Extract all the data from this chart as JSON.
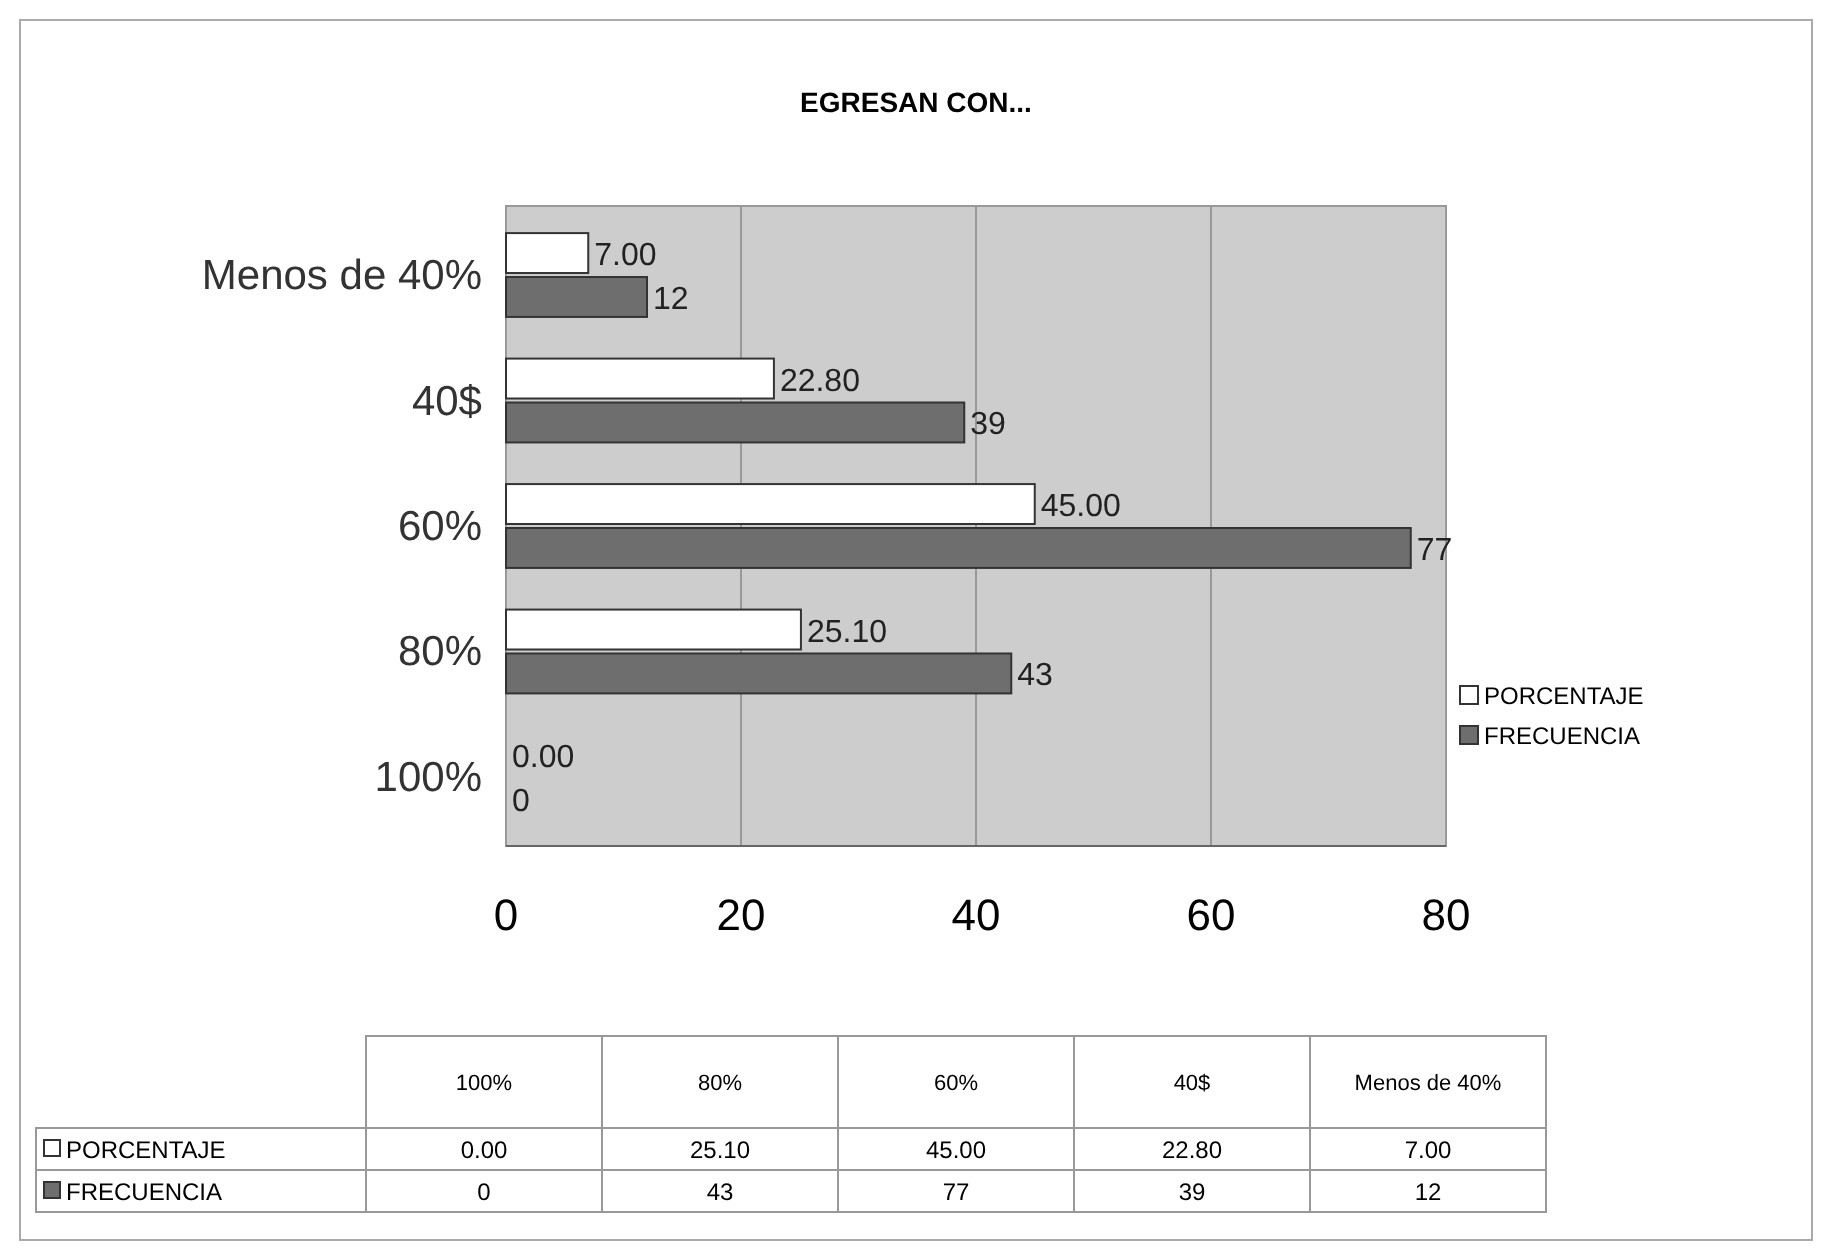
{
  "chart_data": {
    "type": "bar",
    "orientation": "horizontal",
    "title": "EGRESAN CON...",
    "categories": [
      "Menos de 40%",
      "40$",
      "60%",
      "80%",
      "100%"
    ],
    "series": [
      {
        "name": "PORCENTAJE",
        "color": "#ffffff",
        "values": [
          7.0,
          22.8,
          45.0,
          25.1,
          0.0
        ],
        "value_labels": [
          "7.00",
          "22.80",
          "45.00",
          "25.10",
          "0.00"
        ]
      },
      {
        "name": "FRECUENCIA",
        "color": "#6e6e6e",
        "values": [
          12,
          39,
          77,
          43,
          0
        ],
        "value_labels": [
          "12",
          "39",
          "77",
          "43",
          "0"
        ]
      }
    ],
    "xlim": [
      0,
      80
    ],
    "xticks": [
      0,
      20,
      40,
      60,
      80
    ],
    "grid": "x",
    "legend": "right"
  }
}
